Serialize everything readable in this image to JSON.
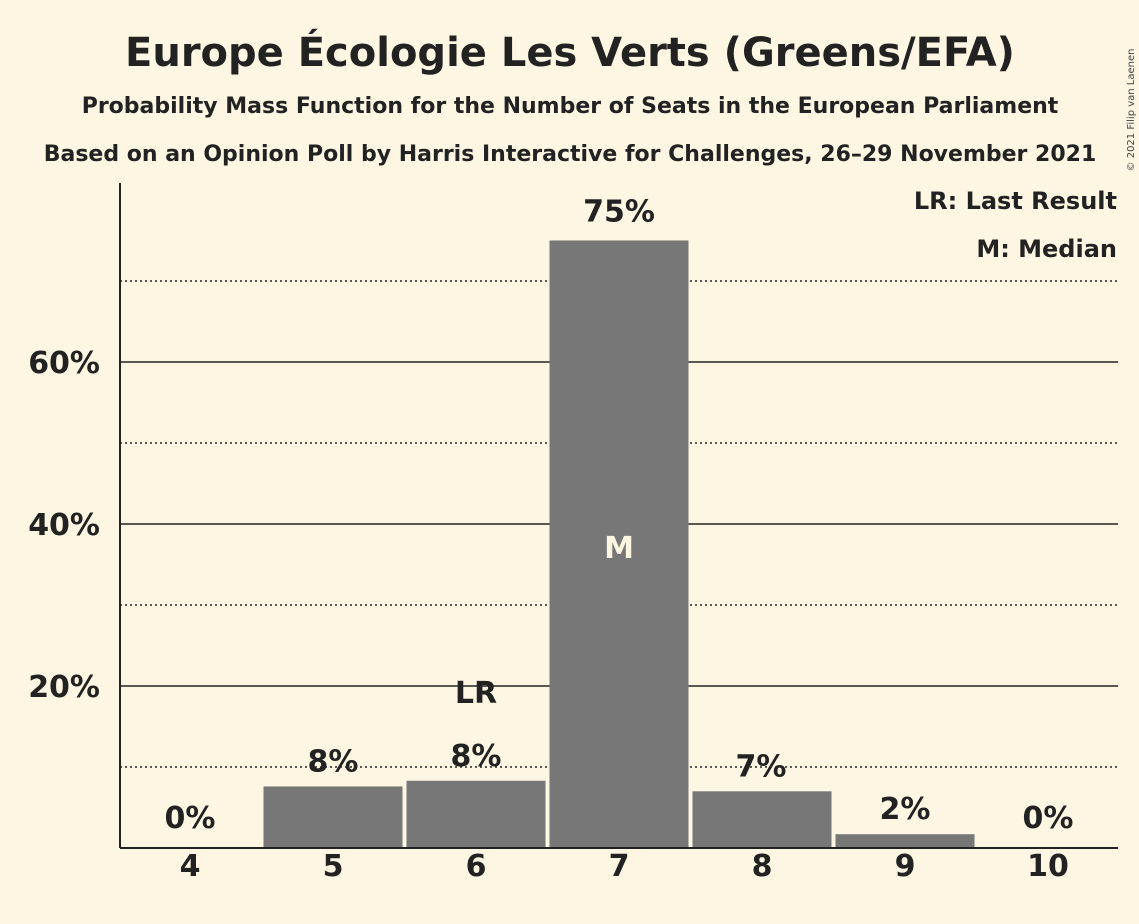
{
  "chart_data": {
    "type": "bar",
    "title": "Europe Écologie Les Verts (Greens/EFA)",
    "subtitle": "Probability Mass Function for the Number of Seats in the European Parliament",
    "subtitle2": "Based on an Opinion Poll by Harris Interactive for Challenges, 26–29 November 2021",
    "categories": [
      "4",
      "5",
      "6",
      "7",
      "8",
      "9",
      "10"
    ],
    "values": [
      0,
      7.6,
      8.3,
      75,
      7,
      1.7,
      0
    ],
    "value_labels": [
      "0%",
      "8%",
      "8%",
      "75%",
      "7%",
      "2%",
      "0%"
    ],
    "ylim": [
      0,
      82
    ],
    "yticks": [
      20,
      40,
      60
    ],
    "ytick_labels": [
      "20%",
      "40%",
      "60%"
    ],
    "dotted_gridlines": [
      10,
      30,
      50,
      70
    ],
    "last_result_category": "6",
    "last_result_marker": "LR",
    "median_category": "7",
    "median_marker": "M",
    "legend": [
      "LR: Last Result",
      "M: Median"
    ],
    "bar_color": "#777777",
    "background_color": "#fdf6e3",
    "copyright": "© 2021 Filip van Laenen"
  }
}
